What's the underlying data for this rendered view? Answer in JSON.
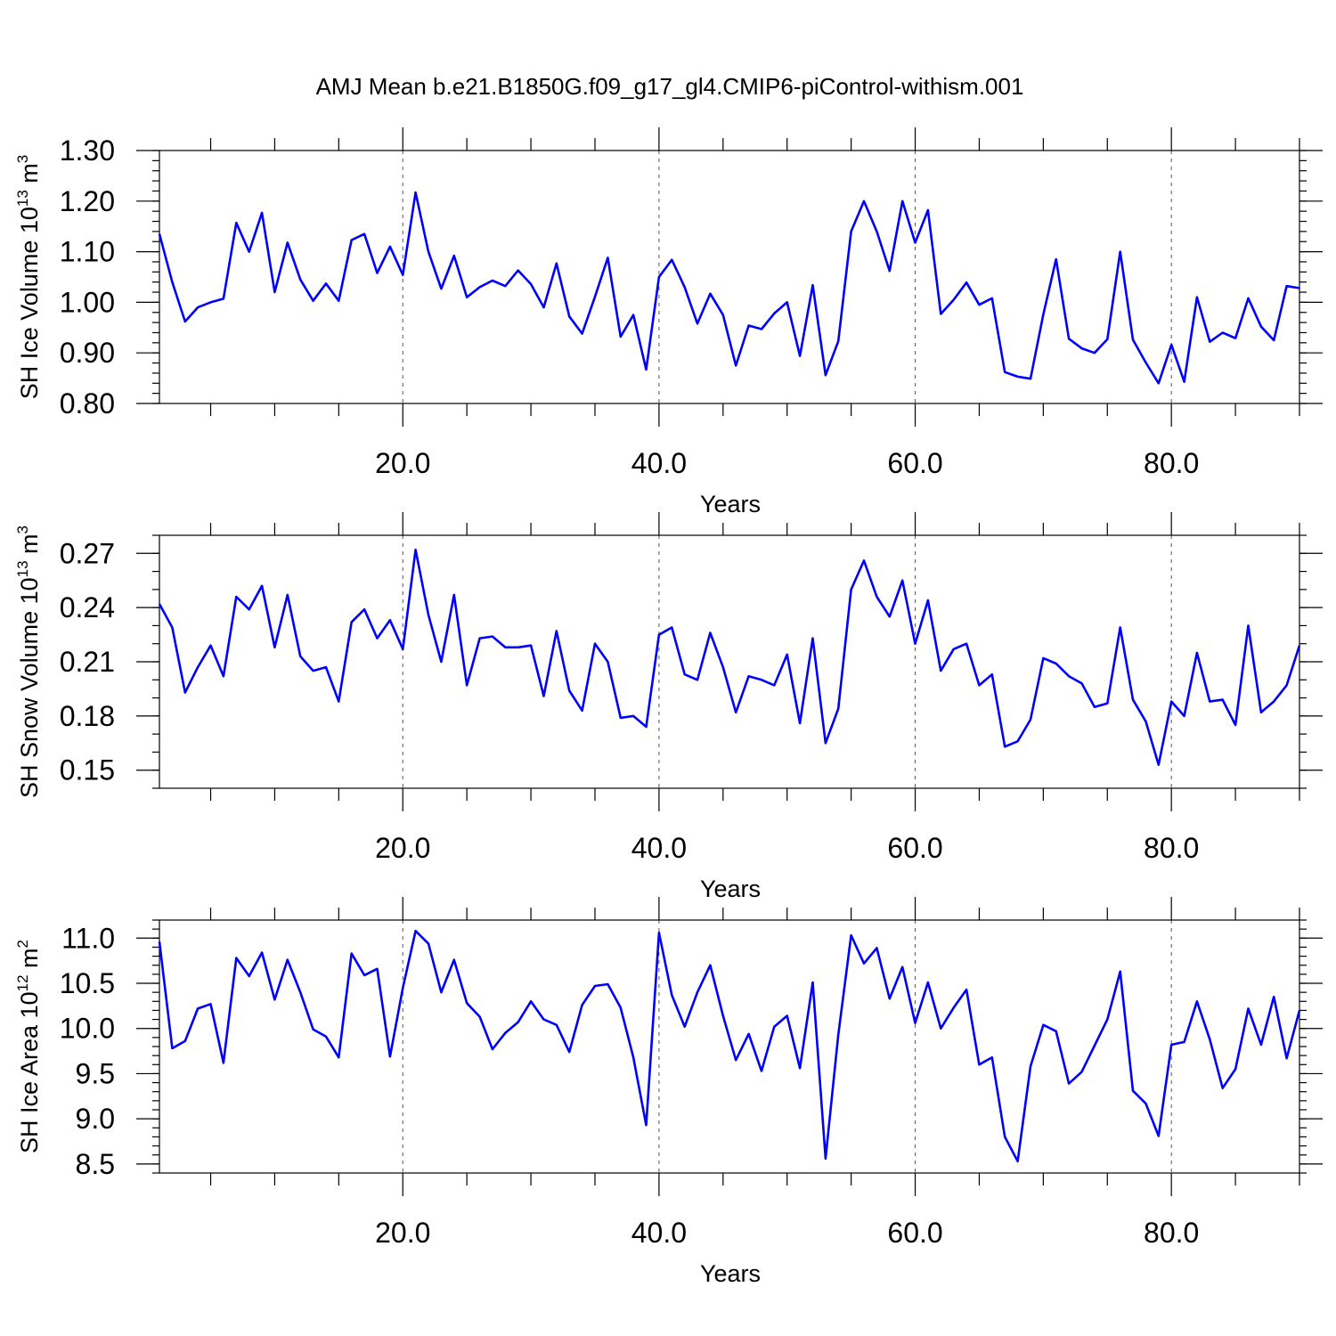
{
  "title": "AMJ Mean b.e21.B1850G.f09_g17_gl4.CMIP6-piControl-withism.001",
  "colors": {
    "line": "#0000ff",
    "axis": "#000000",
    "grid": "#555555"
  },
  "chart_data": [
    {
      "type": "line",
      "ylabel": "SH Ice Volume 10",
      "ylabel_exp": "13",
      "ylabel_unit": " m",
      "ylabel_unit_exp": "3",
      "xlabel": "Years",
      "xlim": [
        1,
        90
      ],
      "ylim": [
        0.8,
        1.3
      ],
      "yticks": [
        0.8,
        0.9,
        1.0,
        1.1,
        1.2,
        1.3
      ],
      "ytick_labels": [
        "0.80",
        "0.90",
        "1.00",
        "1.10",
        "1.20",
        "1.30"
      ],
      "yminor": 0.02,
      "xticks": [
        20,
        40,
        60,
        80
      ],
      "xtick_labels": [
        "20.0",
        "40.0",
        "60.0",
        "80.0"
      ],
      "xminor": 5,
      "grid": "x-dashed",
      "x_start": 1,
      "values": [
        1.135,
        1.04,
        0.962,
        0.99,
        1.0,
        1.007,
        1.157,
        1.1,
        1.177,
        1.02,
        1.118,
        1.045,
        1.003,
        1.037,
        1.003,
        1.123,
        1.135,
        1.058,
        1.11,
        1.054,
        1.217,
        1.1,
        1.027,
        1.092,
        1.01,
        1.03,
        1.043,
        1.032,
        1.063,
        1.036,
        0.99,
        1.077,
        0.972,
        0.938,
        1.011,
        1.088,
        0.932,
        0.975,
        0.867,
        1.05,
        1.084,
        1.03,
        0.958,
        1.017,
        0.975,
        0.875,
        0.954,
        0.947,
        0.978,
        1.0,
        0.894,
        1.034,
        0.856,
        0.923,
        1.14,
        1.2,
        1.14,
        1.062,
        1.2,
        1.118,
        1.182,
        0.977,
        1.005,
        1.039,
        0.995,
        1.008,
        0.862,
        0.853,
        0.849,
        0.976,
        1.085,
        0.928,
        0.909,
        0.9,
        0.927,
        1.1,
        0.926,
        0.881,
        0.84,
        0.916,
        0.843,
        1.01,
        0.922,
        0.94,
        0.929,
        1.008,
        0.952,
        0.925,
        1.032,
        1.028
      ]
    },
    {
      "type": "line",
      "ylabel": "SH Snow Volume 10",
      "ylabel_exp": "13",
      "ylabel_unit": " m",
      "ylabel_unit_exp": "3",
      "xlabel": "Years",
      "xlim": [
        1,
        90
      ],
      "ylim": [
        0.14,
        0.28
      ],
      "yticks": [
        0.15,
        0.18,
        0.21,
        0.24,
        0.27
      ],
      "ytick_labels": [
        "0.15",
        "0.18",
        "0.21",
        "0.24",
        "0.27"
      ],
      "yminor": 0.01,
      "xticks": [
        20,
        40,
        60,
        80
      ],
      "xtick_labels": [
        "20.0",
        "40.0",
        "60.0",
        "80.0"
      ],
      "xminor": 5,
      "grid": "x-dashed",
      "x_start": 1,
      "values": [
        0.242,
        0.229,
        0.193,
        0.207,
        0.219,
        0.202,
        0.246,
        0.239,
        0.252,
        0.218,
        0.247,
        0.213,
        0.205,
        0.207,
        0.188,
        0.232,
        0.239,
        0.223,
        0.233,
        0.217,
        0.272,
        0.236,
        0.21,
        0.247,
        0.197,
        0.223,
        0.224,
        0.218,
        0.218,
        0.219,
        0.191,
        0.227,
        0.194,
        0.183,
        0.22,
        0.21,
        0.179,
        0.18,
        0.174,
        0.225,
        0.229,
        0.203,
        0.2,
        0.226,
        0.207,
        0.182,
        0.202,
        0.2,
        0.197,
        0.214,
        0.176,
        0.223,
        0.165,
        0.184,
        0.25,
        0.266,
        0.246,
        0.235,
        0.255,
        0.22,
        0.244,
        0.205,
        0.217,
        0.22,
        0.197,
        0.203,
        0.163,
        0.166,
        0.178,
        0.212,
        0.209,
        0.202,
        0.198,
        0.185,
        0.187,
        0.229,
        0.189,
        0.177,
        0.153,
        0.188,
        0.18,
        0.215,
        0.188,
        0.189,
        0.175,
        0.23,
        0.182,
        0.188,
        0.197,
        0.219
      ]
    },
    {
      "type": "line",
      "ylabel": "SH Ice Area 10",
      "ylabel_exp": "12",
      "ylabel_unit": " m",
      "ylabel_unit_exp": "2",
      "xlabel": "Years",
      "xlim": [
        1,
        90
      ],
      "ylim": [
        8.4,
        11.2
      ],
      "yticks": [
        8.5,
        9.0,
        9.5,
        10.0,
        10.5,
        11.0
      ],
      "ytick_labels": [
        "8.5",
        "9.0",
        "9.5",
        "10.0",
        "10.5",
        "11.0"
      ],
      "yminor": 0.1,
      "xticks": [
        20,
        40,
        60,
        80
      ],
      "xtick_labels": [
        "20.0",
        "40.0",
        "60.0",
        "80.0"
      ],
      "xminor": 5,
      "grid": "x-dashed",
      "x_start": 1,
      "values": [
        10.96,
        9.78,
        9.86,
        10.22,
        10.27,
        9.62,
        10.78,
        10.58,
        10.84,
        10.32,
        10.76,
        10.4,
        9.99,
        9.91,
        9.68,
        10.83,
        10.59,
        10.66,
        9.69,
        10.45,
        11.08,
        10.94,
        10.4,
        10.76,
        10.28,
        10.13,
        9.77,
        9.95,
        10.07,
        10.3,
        10.1,
        10.04,
        9.74,
        10.26,
        10.47,
        10.49,
        10.23,
        9.68,
        8.93,
        11.06,
        10.37,
        10.02,
        10.4,
        10.7,
        10.14,
        9.65,
        9.94,
        9.53,
        10.02,
        10.14,
        9.56,
        10.51,
        8.56,
        9.93,
        11.03,
        10.72,
        10.89,
        10.33,
        10.68,
        10.06,
        10.51,
        10.0,
        10.23,
        10.43,
        9.6,
        9.68,
        8.8,
        8.53,
        9.58,
        10.04,
        9.97,
        9.39,
        9.52,
        9.81,
        10.1,
        10.63,
        9.31,
        9.17,
        8.81,
        9.82,
        9.85,
        10.3,
        9.88,
        9.34,
        9.55,
        10.22,
        9.82,
        10.35,
        9.67,
        10.2
      ]
    }
  ]
}
